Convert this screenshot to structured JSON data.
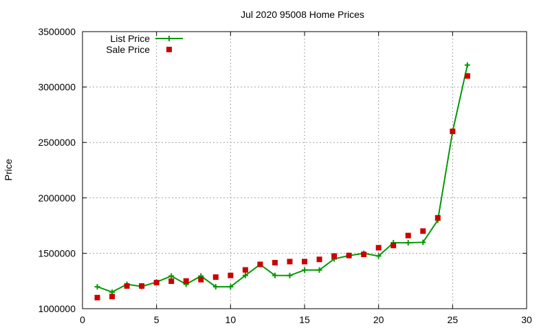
{
  "chart_data": {
    "type": "line",
    "title": "Jul 2020 95008 Home Prices",
    "xlabel": "",
    "ylabel": "Price",
    "xlim": [
      0,
      30
    ],
    "ylim": [
      1000000,
      3500000
    ],
    "x_ticks": [
      "0",
      "5",
      "10",
      "15",
      "20",
      "25",
      "30"
    ],
    "y_ticks": [
      "1000000",
      "1500000",
      "2000000",
      "2500000",
      "3000000",
      "3500000"
    ],
    "grid": true,
    "legend_position": "top-left",
    "series": [
      {
        "name": "List Price",
        "style": "line-with-plus-markers",
        "color": "#009900",
        "x": [
          1,
          2,
          3,
          4,
          5,
          6,
          7,
          8,
          9,
          10,
          11,
          12,
          13,
          14,
          15,
          16,
          17,
          18,
          19,
          20,
          21,
          22,
          23,
          24,
          25,
          26
        ],
        "values": [
          1198000,
          1150000,
          1220000,
          1200000,
          1240000,
          1295000,
          1220000,
          1295000,
          1198000,
          1198000,
          1300000,
          1399000,
          1300000,
          1299000,
          1349000,
          1349000,
          1449000,
          1479000,
          1499000,
          1475000,
          1595000,
          1595000,
          1599000,
          1799000,
          2599000,
          3198000
        ]
      },
      {
        "name": "Sale Price",
        "style": "square-markers",
        "color": "#cc0000",
        "x": [
          1,
          2,
          3,
          4,
          5,
          6,
          7,
          8,
          9,
          10,
          11,
          12,
          13,
          14,
          15,
          16,
          17,
          18,
          19,
          20,
          21,
          22,
          23,
          24,
          25,
          26
        ],
        "values": [
          1100000,
          1110000,
          1205000,
          1205000,
          1235000,
          1248000,
          1250000,
          1262000,
          1285000,
          1300000,
          1350000,
          1400000,
          1415000,
          1425000,
          1425000,
          1445000,
          1475000,
          1480000,
          1490000,
          1550000,
          1570000,
          1660000,
          1700000,
          1820000,
          2600000,
          3100000
        ]
      }
    ]
  }
}
